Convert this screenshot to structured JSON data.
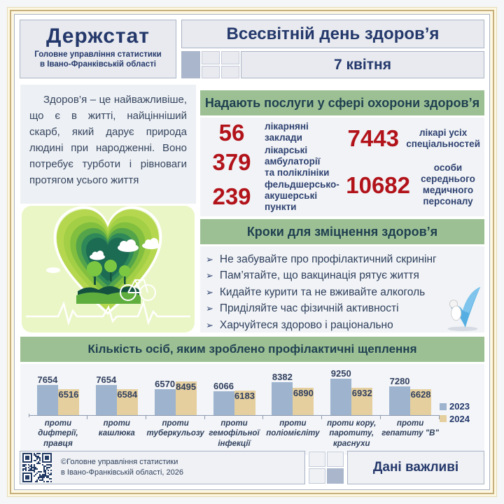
{
  "header": {
    "org_name": "Держстат",
    "org_dept_line1": "Головне управління статистики",
    "org_dept_line2": "в Івано-Франківській області",
    "event_title": "Всесвітній день здоров’я",
    "event_date": "7 квітня"
  },
  "intro": {
    "text": "Здоров’я – це найважливіше, що є в житті, найцінніший скарб, який дарує природа людині при народженні. Воно потребує турботи і рівноваги протягом усього життя"
  },
  "services": {
    "title": "Надають послуги у сфері охорони здоров’я",
    "columns": [
      {
        "stats": [
          {
            "value": "56",
            "label": "лікарняні заклади"
          },
          {
            "value": "379",
            "label": "лікарські амбулаторії\nта поліклініки"
          },
          {
            "value": "239",
            "label": "фельдшерсько-\nакушерські пункти"
          }
        ]
      },
      {
        "stats": [
          {
            "value": "7443",
            "label": "лікарі усіх\nспеціальностей"
          },
          {
            "value": "10682",
            "label": "особи\nсереднього\nмедичного\nперсоналу"
          }
        ]
      }
    ]
  },
  "steps": {
    "title": "Кроки для зміцнення здоров’я",
    "bullet": "➢",
    "items": [
      "Не забувайте про профілактичний скринінг",
      "Пам’ятайте, що вакцинація рятує життя",
      "Кидайте курити та не вживайте алкоголь",
      "Приділяйте час фізичній активності",
      "Харчуйтеся здорово і раціонально"
    ]
  },
  "chart_data": {
    "type": "bar",
    "title": "Кількість осіб, яким зроблено профілактичні щеплення",
    "categories": [
      "проти\nдифтерії,\nправця",
      "проти\nкашлюка",
      "проти\nтуберкульозу",
      "проти\nгемофільної\nінфекції",
      "проти\nполіомієліту",
      "проти кору,\nпаротиту,\nкраснухи",
      "проти\nгепатиту \"В\""
    ],
    "series": [
      {
        "name": "2023",
        "color": "#9db3ce",
        "values": [
          7654,
          7654,
          6570,
          6066,
          8382,
          9250,
          7280
        ]
      },
      {
        "name": "2024",
        "color": "#e5cf9f",
        "values": [
          6516,
          6584,
          8495,
          6183,
          6890,
          6932,
          6628
        ]
      }
    ],
    "xlabel": "",
    "ylabel": "",
    "ylim": [
      0,
      9250
    ],
    "grid": false,
    "legend_position": "right"
  },
  "footer": {
    "copyright_line1": "©Головне управління статистики",
    "copyright_line2": "в Івано-Франківській області, 2026",
    "slogan": "Дані важливі"
  },
  "colors": {
    "navy": "#24386b",
    "stat_red": "#b2131a",
    "section_green": "#9cc094",
    "bar_2023": "#9db3ce",
    "bar_2024": "#e5cf9f",
    "frame_tan": "#c6ae7d"
  }
}
